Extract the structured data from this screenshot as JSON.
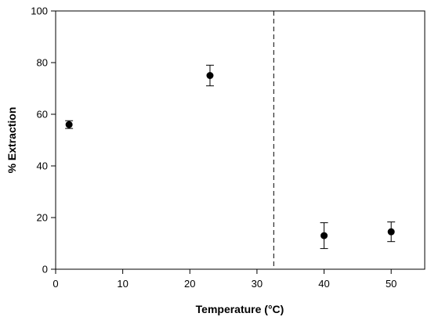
{
  "chart_data": {
    "type": "scatter",
    "xlabel": "Temperature (°C)",
    "ylabel": "% Extraction",
    "xlim": [
      0,
      55
    ],
    "ylim": [
      0,
      100
    ],
    "xticks": [
      0,
      10,
      20,
      30,
      40,
      50
    ],
    "yticks": [
      0,
      20,
      40,
      60,
      80,
      100
    ],
    "grid": false,
    "series": [
      {
        "points": [
          {
            "x": 2,
            "y": 56,
            "err": 1.5
          },
          {
            "x": 23,
            "y": 75,
            "err": 4
          },
          {
            "x": 40,
            "y": 13,
            "err": 5
          },
          {
            "x": 50,
            "y": 14.5,
            "err": 3.8
          }
        ]
      }
    ],
    "reference_line": {
      "x": 32.5,
      "style": "dashed"
    }
  }
}
